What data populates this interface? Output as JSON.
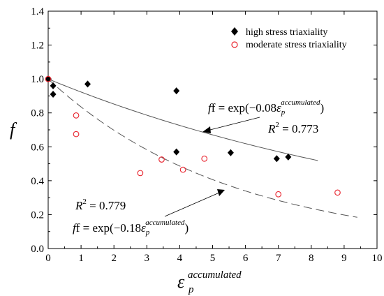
{
  "chart_data": {
    "type": "scatter",
    "xlim": [
      0,
      10
    ],
    "ylim": [
      0,
      1.4
    ],
    "x_ticks": [
      "0",
      "1",
      "2",
      "3",
      "4",
      "5",
      "6",
      "7",
      "8",
      "9",
      "10"
    ],
    "y_ticks": [
      "0.0",
      "0.2",
      "0.4",
      "0.6",
      "0.8",
      "1.0",
      "1.2",
      "1.4"
    ],
    "ylabel": "f",
    "xlabel": {
      "base": "ε",
      "sub": "p",
      "sup": "accumulated"
    },
    "legend_position": "top-right",
    "series": [
      {
        "name": "high stress triaxiality",
        "marker": "filled-diamond",
        "color": "#000000",
        "points": [
          [
            0.0,
            1.0
          ],
          [
            0.15,
            0.96
          ],
          [
            0.15,
            0.91
          ],
          [
            1.2,
            0.97
          ],
          [
            3.9,
            0.93
          ],
          [
            3.9,
            0.57
          ],
          [
            5.55,
            0.565
          ],
          [
            6.95,
            0.53
          ],
          [
            7.3,
            0.54
          ]
        ]
      },
      {
        "name": "moderate stress triaxiality",
        "marker": "open-circle",
        "color": "#e8212b",
        "points": [
          [
            0.0,
            1.0
          ],
          [
            0.85,
            0.785
          ],
          [
            0.85,
            0.675
          ],
          [
            2.8,
            0.445
          ],
          [
            3.45,
            0.525
          ],
          [
            4.1,
            0.465
          ],
          [
            4.75,
            0.53
          ],
          [
            7.0,
            0.32
          ],
          [
            8.8,
            0.33
          ]
        ]
      }
    ],
    "fits": [
      {
        "style": "solid",
        "coefficient": -0.08,
        "x_range": [
          0,
          8.2
        ],
        "equation": {
          "lhs": "f = exp(",
          "coef": "−0.08",
          "close": ")"
        },
        "r2": {
          "label": "R",
          "exp": "2",
          "value": " = 0.773"
        }
      },
      {
        "style": "dashed",
        "coefficient": -0.18,
        "x_range": [
          0,
          9.4
        ],
        "equation": {
          "lhs": "f = exp(",
          "coef": "−0.18",
          "close": ")"
        },
        "r2": {
          "label": "R",
          "exp": "2",
          "value": " = 0.779"
        }
      }
    ]
  }
}
